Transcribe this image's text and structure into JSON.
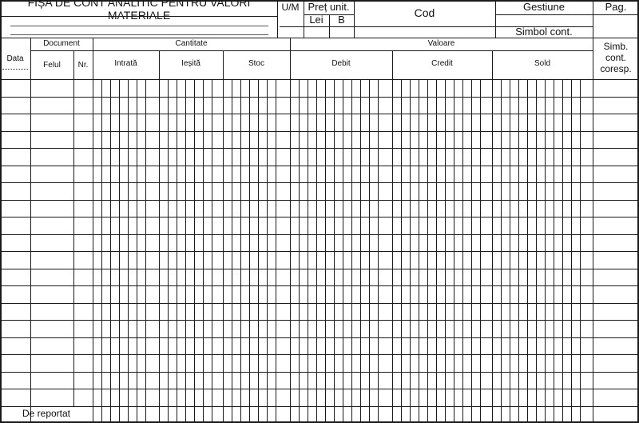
{
  "header": {
    "title": "FIȘA DE CONT ANALITIC PENTRU VALORI MATERIALE",
    "um": "U/M",
    "pret_unit": "Preț unit.",
    "lei": "Lei",
    "b": "B",
    "cod": "Cod",
    "gestiune": "Gestiune",
    "simbol_cont": "Simbol cont.",
    "pag": "Pag."
  },
  "columns": {
    "data": "Data",
    "document": "Document",
    "felul": "Felul",
    "nr": "Nr.",
    "cantitate": "Cantitate",
    "intrata": "Intrată",
    "iesita": "Ieșită",
    "stoc": "Stoc",
    "valoare": "Valoare",
    "debit": "Debit",
    "credit": "Credit",
    "sold": "Sold",
    "simb": "Simb. cont. coresp."
  },
  "footer": {
    "de_reportat": "De reportat"
  }
}
